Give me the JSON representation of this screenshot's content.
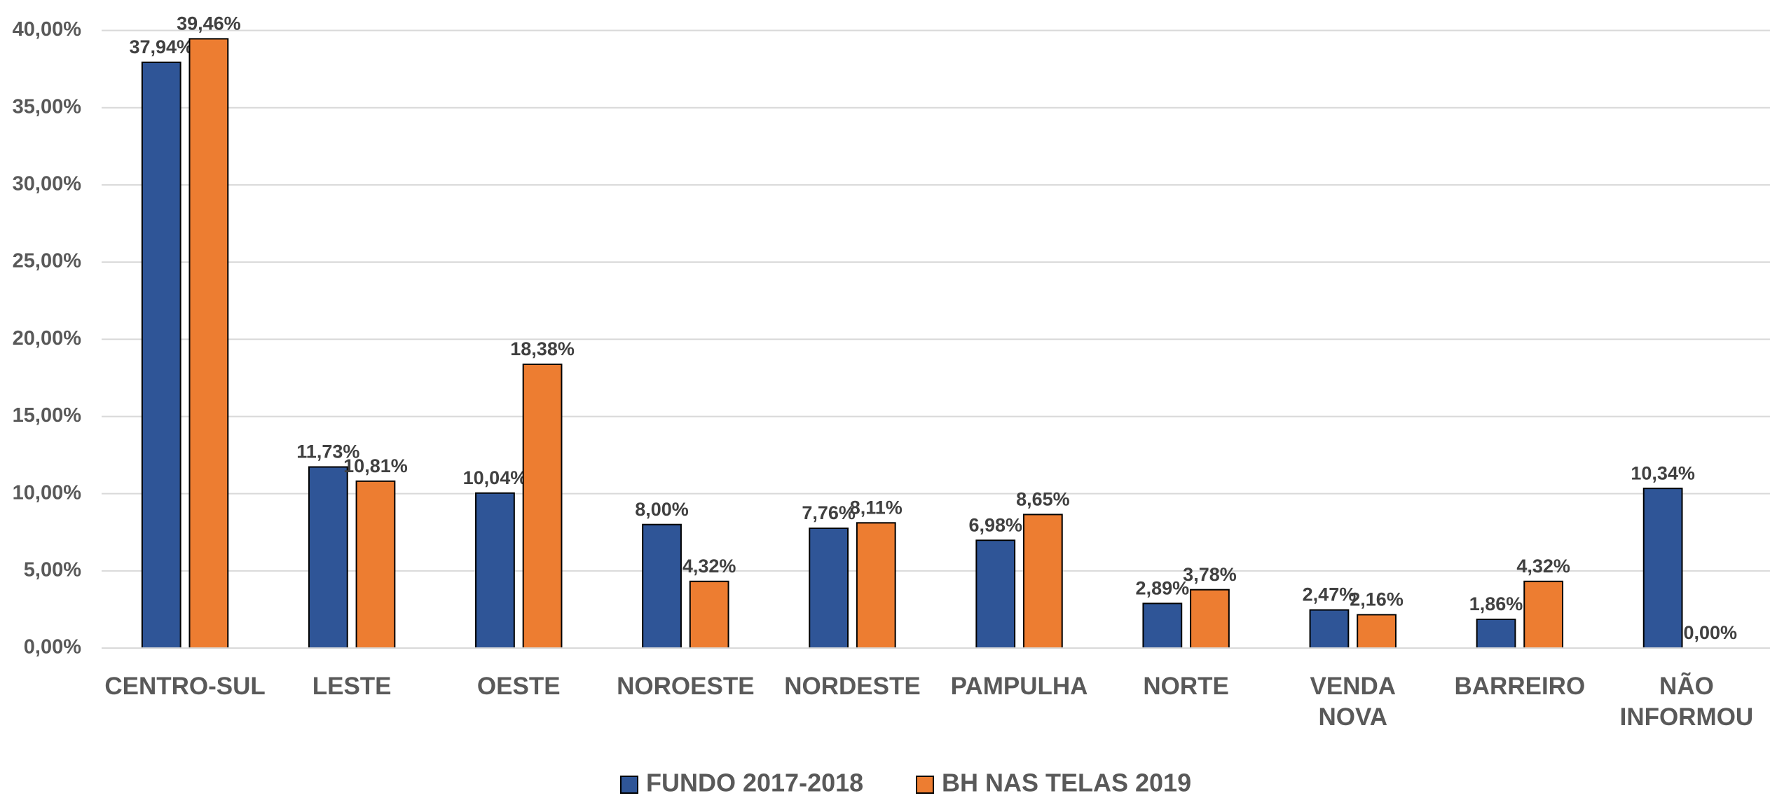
{
  "chart_data": {
    "type": "bar",
    "categories": [
      "CENTRO-SUL",
      "LESTE",
      "OESTE",
      "NOROESTE",
      "NORDESTE",
      "PAMPULHA",
      "NORTE",
      "VENDA\nNOVA",
      "BARREIRO",
      "NÃO\nINFORMOU"
    ],
    "series": [
      {
        "name": "FUNDO 2017-2018",
        "color": "#2f5597",
        "values": [
          37.94,
          11.73,
          10.04,
          8.0,
          7.76,
          6.98,
          2.89,
          2.47,
          1.86,
          10.34
        ],
        "value_labels": [
          "37,94%",
          "11,73%",
          "10,04%",
          "8,00%",
          "7,76%",
          "6,98%",
          "2,89%",
          "2,47%",
          "1,86%",
          "10,34%"
        ]
      },
      {
        "name": "BH NAS TELAS 2019",
        "color": "#ed7d31",
        "values": [
          39.46,
          10.81,
          18.38,
          4.32,
          8.11,
          8.65,
          3.78,
          2.16,
          4.32,
          0.0
        ],
        "value_labels": [
          "39,46%",
          "10,81%",
          "18,38%",
          "4,32%",
          "8,11%",
          "8,65%",
          "3,78%",
          "2,16%",
          "4,32%",
          "0,00%"
        ]
      }
    ],
    "ylim": [
      0,
      40
    ],
    "yticks": [
      {
        "value": 0,
        "label": "0,00%"
      },
      {
        "value": 5,
        "label": "5,00%"
      },
      {
        "value": 10,
        "label": "10,00%"
      },
      {
        "value": 15,
        "label": "15,00%"
      },
      {
        "value": 20,
        "label": "20,00%"
      },
      {
        "value": 25,
        "label": "25,00%"
      },
      {
        "value": 30,
        "label": "30,00%"
      },
      {
        "value": 35,
        "label": "35,00%"
      },
      {
        "value": 40,
        "label": "40,00%"
      }
    ],
    "grid": true,
    "legend": "bottom"
  }
}
